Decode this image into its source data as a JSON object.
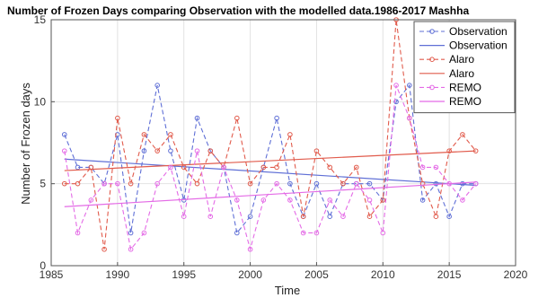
{
  "chart_data": {
    "type": "line",
    "title": "Number of Frozen Days comparing Observation with the modelled data.1986-2017 Mashha",
    "xlabel": "Time",
    "ylabel": "Number of Frozen days",
    "xlim": [
      1985,
      2020
    ],
    "ylim": [
      0,
      15
    ],
    "xticks": [
      1985,
      1990,
      1995,
      2000,
      2005,
      2010,
      2015,
      2020
    ],
    "yticks": [
      0,
      5,
      10,
      15
    ],
    "grid": true,
    "legend_position": "top-right",
    "x": [
      1986,
      1987,
      1988,
      1989,
      1990,
      1991,
      1992,
      1993,
      1994,
      1995,
      1996,
      1997,
      1998,
      1999,
      2000,
      2001,
      2002,
      2003,
      2004,
      2005,
      2006,
      2007,
      2008,
      2009,
      2010,
      2011,
      2012,
      2013,
      2014,
      2015,
      2016,
      2017
    ],
    "series": [
      {
        "name": "Observation",
        "kind": "data",
        "color": "#5f6fd6",
        "dashed": true,
        "values": [
          8,
          6,
          6,
          5,
          8,
          2,
          7,
          11,
          7,
          4,
          9,
          7,
          6,
          2,
          3,
          6,
          9,
          5,
          3,
          5,
          3,
          5,
          5,
          5,
          4,
          10,
          11,
          4,
          5,
          3,
          5,
          5
        ]
      },
      {
        "name": "Observation",
        "kind": "trend",
        "color": "#5f6fd6",
        "dashed": false,
        "line": [
          6.5,
          4.9
        ]
      },
      {
        "name": "Alaro",
        "kind": "data",
        "color": "#e15b4c",
        "dashed": true,
        "values": [
          5,
          5,
          6,
          1,
          9,
          5,
          8,
          7,
          8,
          6,
          5,
          7,
          6,
          9,
          5,
          6,
          6,
          8,
          3,
          7,
          6,
          5,
          6,
          3,
          4,
          15,
          9,
          5,
          3,
          7,
          8,
          7
        ]
      },
      {
        "name": "Alaro",
        "kind": "trend",
        "color": "#e15b4c",
        "dashed": false,
        "line": [
          5.8,
          7.0
        ]
      },
      {
        "name": "REMO",
        "kind": "data",
        "color": "#e46be6",
        "dashed": true,
        "values": [
          7,
          2,
          4,
          5,
          5,
          1,
          2,
          5,
          6,
          3,
          7,
          3,
          6,
          4,
          1,
          4,
          5,
          4,
          2,
          2,
          4,
          3,
          5,
          4,
          2,
          11,
          9,
          6,
          6,
          5,
          4,
          5
        ]
      },
      {
        "name": "REMO",
        "kind": "trend",
        "color": "#e46be6",
        "dashed": false,
        "line": [
          3.6,
          5.1
        ]
      }
    ]
  }
}
